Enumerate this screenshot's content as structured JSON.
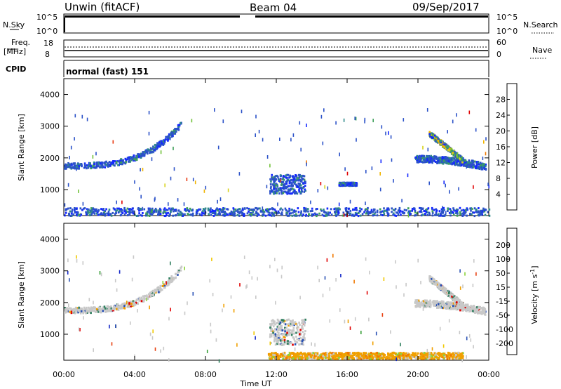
{
  "header": {
    "station": "Unwin (fitACF)",
    "beam": "Beam 04",
    "date": "09/Sep/2017"
  },
  "top_panels": {
    "nsky_label": "N.Sky",
    "nsky_ticks": [
      "10^5",
      "10^0"
    ],
    "nsearch_label": "N.Search",
    "freq_label": "Freq.",
    "freq_unit": "[MHz]",
    "freq_ticks": [
      "18",
      "8"
    ],
    "nave_ticks": [
      "60",
      "0"
    ],
    "nave_label": "Nave",
    "cpid_label": "CPID",
    "cpid_value": "normal (fast) 151"
  },
  "chart_data": [
    {
      "type": "heatmap",
      "title": "Power",
      "ylabel": "Slant Range [km]",
      "ylim": [
        180,
        4500
      ],
      "yticks": [
        1000,
        2000,
        3000,
        4000
      ],
      "xlim": [
        0,
        24
      ],
      "colorbar": {
        "label": "Power [dB]",
        "ticks": [
          "4",
          "8",
          "12",
          "16",
          "20",
          "24",
          "28"
        ],
        "colors": [
          "#1428ff",
          "#2b52c8",
          "#2f8a8a",
          "#3fa05a",
          "#72c23a",
          "#d7d21c",
          "#f0b400",
          "#f07800",
          "#e83a12",
          "#e00000"
        ]
      },
      "features": [
        {
          "start_h": 0.0,
          "end_h": 6.6,
          "range_start": 1780,
          "range_end": 3100,
          "shape": "rising arc"
        },
        {
          "start_h": 11.6,
          "end_h": 13.6,
          "range_start": 900,
          "range_end": 1500,
          "shape": "patch"
        },
        {
          "start_h": 15.5,
          "end_h": 16.5,
          "range_start": 1150,
          "range_end": 1250,
          "shape": "patch"
        },
        {
          "start_h": 19.8,
          "end_h": 23.8,
          "range_start": 2000,
          "range_end": 1750,
          "shape": "descending arc"
        },
        {
          "start_h": 20.6,
          "end_h": 22.5,
          "range_start": 2800,
          "range_end": 1950,
          "shape": "descending streak"
        },
        {
          "start_h": 0.0,
          "end_h": 24.0,
          "range_start": 200,
          "range_end": 450,
          "shape": "ground scatter band"
        }
      ]
    },
    {
      "type": "heatmap",
      "title": "Velocity",
      "ylabel": "Slant Range [km]",
      "ylim": [
        180,
        4500
      ],
      "yticks": [
        1000,
        2000,
        3000,
        4000
      ],
      "xlim": [
        0,
        24
      ],
      "xlabel": "Time UT",
      "xticks": [
        "00:00",
        "04:00",
        "08:00",
        "12:00",
        "16:00",
        "20:00",
        "00:00"
      ],
      "colorbar": {
        "label": "Velocity [m s^-1]",
        "ticks": [
          "200",
          "100",
          "50",
          "15",
          "-15",
          "-50",
          "-100",
          "-200"
        ],
        "colors": [
          "#1428c8",
          "#2850b4",
          "#2e7e5e",
          "#3aa03a",
          "#8cd23c",
          "#c8c8c8",
          "#f0c800",
          "#f0a000",
          "#f07800",
          "#e84010",
          "#e00000"
        ]
      },
      "features": [
        {
          "start_h": 0.0,
          "end_h": 6.6,
          "range_start": 1780,
          "range_end": 3100,
          "shape": "rising arc"
        },
        {
          "start_h": 11.6,
          "end_h": 13.6,
          "range_start": 700,
          "range_end": 1500,
          "shape": "patch"
        },
        {
          "start_h": 19.8,
          "end_h": 23.8,
          "range_start": 2000,
          "range_end": 1750,
          "shape": "descending arc"
        },
        {
          "start_h": 20.6,
          "end_h": 22.5,
          "range_start": 2800,
          "range_end": 1950,
          "shape": "descending streak"
        },
        {
          "start_h": 11.5,
          "end_h": 22.5,
          "range_start": 250,
          "range_end": 450,
          "shape": "negative-velocity ground band"
        }
      ]
    }
  ]
}
